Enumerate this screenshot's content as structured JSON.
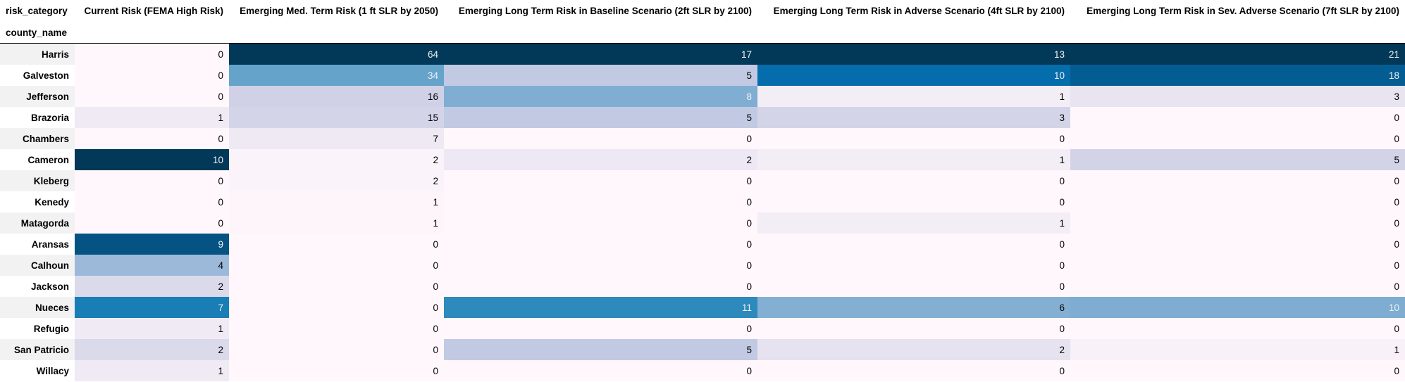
{
  "table": {
    "corner_label": "risk_category",
    "index_label": "county_name",
    "columns": [
      "Current Risk (FEMA High Risk)",
      "Emerging Med. Term Risk (1 ft SLR by 2050)",
      "Emerging Long Term Risk in Baseline Scenario (2ft SLR by 2100)",
      "Emerging Long Term Risk in Adverse Scenario (4ft SLR by 2100)",
      "Emerging Long Term Risk in Sev. Adverse Scenario (7ft SLR by 2100)"
    ],
    "rows": [
      {
        "county": "Harris",
        "values": [
          0,
          64,
          17,
          13,
          21
        ]
      },
      {
        "county": "Galveston",
        "values": [
          0,
          34,
          5,
          10,
          18
        ]
      },
      {
        "county": "Jefferson",
        "values": [
          0,
          16,
          8,
          1,
          3
        ]
      },
      {
        "county": "Brazoria",
        "values": [
          1,
          15,
          5,
          3,
          0
        ]
      },
      {
        "county": "Chambers",
        "values": [
          0,
          7,
          0,
          0,
          0
        ]
      },
      {
        "county": "Cameron",
        "values": [
          10,
          2,
          2,
          1,
          5
        ]
      },
      {
        "county": "Kleberg",
        "values": [
          0,
          2,
          0,
          0,
          0
        ]
      },
      {
        "county": "Kenedy",
        "values": [
          0,
          1,
          0,
          0,
          0
        ]
      },
      {
        "county": "Matagorda",
        "values": [
          0,
          1,
          0,
          1,
          0
        ]
      },
      {
        "county": "Aransas",
        "values": [
          9,
          0,
          0,
          0,
          0
        ]
      },
      {
        "county": "Calhoun",
        "values": [
          4,
          0,
          0,
          0,
          0
        ]
      },
      {
        "county": "Jackson",
        "values": [
          2,
          0,
          0,
          0,
          0
        ]
      },
      {
        "county": "Nueces",
        "values": [
          7,
          0,
          11,
          6,
          10
        ]
      },
      {
        "county": "Refugio",
        "values": [
          1,
          0,
          0,
          0,
          0
        ]
      },
      {
        "county": "San Patricio",
        "values": [
          2,
          0,
          5,
          2,
          1
        ]
      },
      {
        "county": "Willacy",
        "values": [
          1,
          0,
          0,
          0,
          0
        ]
      }
    ],
    "colormap": {
      "name": "PuBu",
      "stops": [
        "#fff7fb",
        "#ece7f2",
        "#d0d1e6",
        "#a6bddb",
        "#74a9cf",
        "#3690c0",
        "#0570b0",
        "#045a8d",
        "#023858"
      ]
    }
  }
}
